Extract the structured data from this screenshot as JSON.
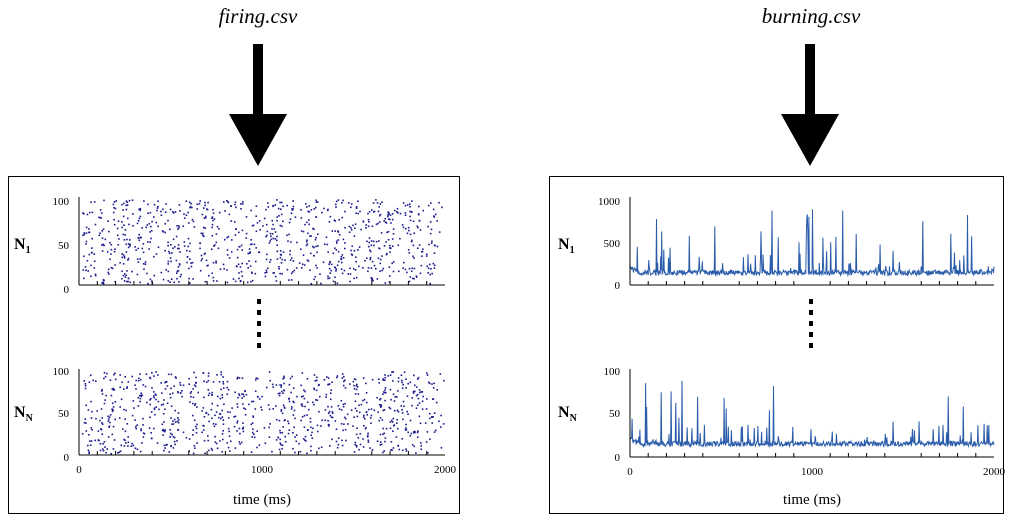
{
  "files": {
    "left": "firing.csv",
    "right": "burning.csv"
  },
  "panels": {
    "left": {
      "type": "raster",
      "top_plot": {
        "row_label_main": "N",
        "row_label_sub": "1",
        "yticks": [
          "0",
          "50",
          "100"
        ]
      },
      "bottom_plot": {
        "row_label_main": "N",
        "row_label_sub": "N",
        "yticks": [
          "0",
          "50",
          "100"
        ]
      },
      "xticks": [
        "0",
        "1000",
        "2000"
      ],
      "xlabel": "time (ms)"
    },
    "right": {
      "type": "line",
      "top_plot": {
        "row_label_main": "N",
        "row_label_sub": "1",
        "yticks": [
          "0",
          "500",
          "1000"
        ]
      },
      "bottom_plot": {
        "row_label_main": "N",
        "row_label_sub": "N",
        "yticks": [
          "0",
          "50",
          "100"
        ]
      },
      "xticks": [
        "0",
        "1000",
        "2000"
      ],
      "xlabel": "time (ms)"
    }
  },
  "colors": {
    "raster_dots": "#1a1a8c",
    "trace": "#2a5caa",
    "axis": "#000000"
  },
  "chart_data": [
    {
      "type": "scatter",
      "name": "raster N1",
      "x_range": [
        0,
        2000
      ],
      "y_range": [
        0,
        100
      ],
      "description_values": "spike raster of 100 neurons over 2000 ms"
    },
    {
      "type": "scatter",
      "name": "raster NN",
      "x_range": [
        0,
        2000
      ],
      "y_range": [
        0,
        100
      ]
    },
    {
      "type": "line",
      "name": "trace N1",
      "x_range": [
        0,
        2000
      ],
      "y_range": [
        0,
        1000
      ],
      "baseline": 120,
      "peaks_max": 860
    },
    {
      "type": "line",
      "name": "trace NN",
      "x_range": [
        0,
        2000
      ],
      "y_range": [
        0,
        100
      ],
      "baseline": 14,
      "peaks_max": 88
    }
  ]
}
